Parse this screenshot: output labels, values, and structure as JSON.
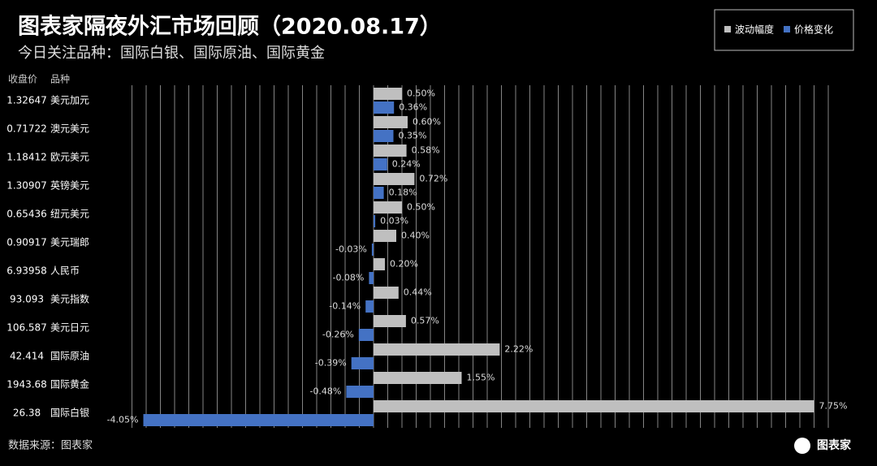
{
  "chart_data": {
    "type": "grouped-hbar",
    "title": "图表家隔夜外汇市场回顾（2020.08.17）",
    "subtitle": "今日关注品种：国际白银、国际原油、国际黄金",
    "price_header": "收盘价",
    "category_header": "品种",
    "closing_prices": [
      "1.32647",
      "0.71722",
      "1.18412",
      "1.30907",
      "0.65436",
      "0.90917",
      "6.93958",
      "93.093",
      "106.587",
      "42.414",
      "1943.68",
      "26.38"
    ],
    "categories": [
      "美元加元",
      "澳元美元",
      "欧元美元",
      "英镑美元",
      "纽元美元",
      "美元瑞郎",
      "人民币",
      "美元指数",
      "美元日元",
      "国际原油",
      "国际黄金",
      "国际白银"
    ],
    "series": [
      {
        "name": "波动幅度",
        "color": "#bfbfbf",
        "values": [
          0.5,
          0.6,
          0.58,
          0.72,
          0.5,
          0.4,
          0.2,
          0.44,
          0.57,
          2.22,
          1.55,
          7.75
        ],
        "value_labels": [
          "0.50%",
          "0.60%",
          "0.58%",
          "0.72%",
          "0.50%",
          "0.40%",
          "0.20%",
          "0.44%",
          "0.57%",
          "2.22%",
          "1.55%",
          "7.75%"
        ]
      },
      {
        "name": "价格变化",
        "color": "#4472c4",
        "values": [
          0.36,
          0.35,
          0.24,
          0.18,
          0.03,
          -0.03,
          -0.08,
          -0.14,
          -0.26,
          -0.39,
          -0.48,
          -4.05
        ],
        "value_labels": [
          "0.36%",
          "0.35%",
          "0.24%",
          "0.18%",
          "0.03%",
          "-0.03%",
          "-0.08%",
          "-0.14%",
          "-0.26%",
          "-0.39%",
          "-0.48%",
          "-4.05%"
        ]
      }
    ],
    "xlim": [
      -4.5,
      8.25
    ],
    "xticks": [
      -4.25,
      -4,
      -3.75,
      -3.5,
      -3.25,
      -3,
      -2.75,
      -2.5,
      -2.25,
      -2,
      -1.75,
      -1.5,
      -1.25,
      -1,
      -0.75,
      -0.5,
      -0.25,
      0,
      0.25,
      0.5,
      0.75,
      1,
      1.25,
      1.5,
      1.75,
      2,
      2.25,
      2.5,
      2.75,
      3,
      3.25,
      3.5,
      3.75,
      4,
      4.25,
      4.5,
      4.75,
      5,
      5.25,
      5.5,
      5.75,
      6,
      6.25,
      6.5,
      6.75,
      7,
      7.25,
      7.5,
      7.75,
      8
    ],
    "grid": true,
    "legend": "top-right",
    "source": "数据来源：图表家",
    "logo_text": "图表家"
  }
}
